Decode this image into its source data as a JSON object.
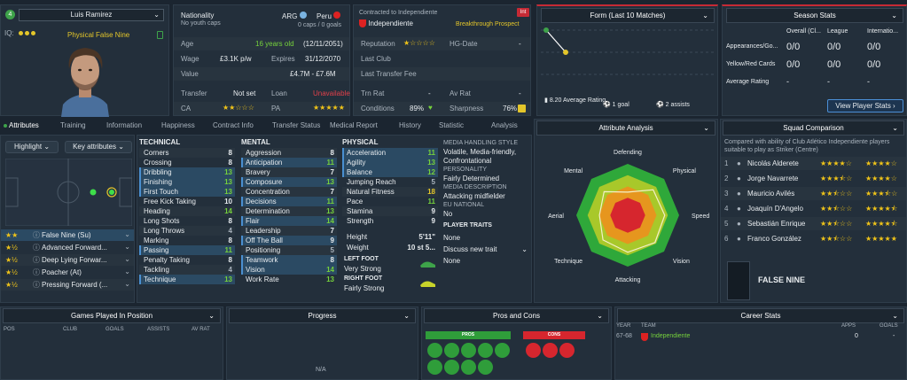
{
  "player": {
    "name": "Luis Ramirez",
    "iq_label": "IQ:",
    "role_text": "Physical False Nine",
    "position_badge": "4"
  },
  "nationality": {
    "label": "Nationality",
    "subtext": "No youth caps",
    "nation1": "ARG",
    "nation2": "Peru",
    "caps": "0 caps / 0 goals"
  },
  "contract": {
    "label": "Contracted to Independiente",
    "club": "Independiente",
    "tag": "Breakthrough Prospect",
    "badge": "Int"
  },
  "details": {
    "age_label": "Age",
    "age_value": "16 years old",
    "dob": "(12/11/2051)",
    "wage_label": "Wage",
    "wage_value": "£3.1K p/w",
    "expires_label": "Expires",
    "expires_value": "31/12/2070",
    "value_label": "Value",
    "value_value": "£4.7M - £7.6M",
    "transfer_label": "Transfer",
    "transfer_value": "Not set",
    "loan_label": "Loan",
    "loan_value": "Unavailable",
    "ca_label": "CA",
    "pa_label": "PA"
  },
  "reputation": {
    "reputation_label": "Reputation",
    "hgdate_label": "HG-Date",
    "hgdate_value": "-",
    "lastclub_label": "Last Club",
    "lastfee_label": "Last Transfer Fee",
    "trnrat_label": "Trn Rat",
    "trnrat_value": "-",
    "avrat_label": "Av Rat",
    "avrat_value": "-",
    "conditions_label": "Conditions",
    "conditions_value": "89%",
    "sharpness_label": "Sharpness",
    "sharpness_value": "76%"
  },
  "form": {
    "title": "Form (Last 10 Matches)",
    "avg_value": "8.20",
    "avg_label": "Average Rating",
    "goals": "1 goal",
    "assists": "2 assists"
  },
  "season": {
    "title": "Season Stats",
    "cols": [
      "Overall (Cl...",
      "League",
      "Internatio..."
    ],
    "rows": [
      {
        "label": "Appearances/Go...",
        "vals": [
          "0/0",
          "0/0",
          "0/0"
        ]
      },
      {
        "label": "Yellow/Red Cards",
        "vals": [
          "0/0",
          "0/0",
          "0/0"
        ]
      },
      {
        "label": "Average Rating",
        "vals": [
          "-",
          "-",
          "-"
        ]
      }
    ],
    "button": "View Player Stats"
  },
  "tabs": [
    "Attributes",
    "Training",
    "Information",
    "Happiness",
    "Contract Info",
    "Transfer Status",
    "Medical Report",
    "History",
    "Statistic",
    "Analysis"
  ],
  "left": {
    "highlight": "Highlight",
    "keyattr": "Key attributes",
    "roles": [
      {
        "name": "False Nine (Su)"
      },
      {
        "name": "Advanced Forward..."
      },
      {
        "name": "Deep Lying Forwar..."
      },
      {
        "name": "Poacher (At)"
      },
      {
        "name": "Pressing Forward (..."
      }
    ]
  },
  "technical": {
    "title": "TECHNICAL",
    "items": [
      {
        "n": "Corners",
        "v": "8"
      },
      {
        "n": "Crossing",
        "v": "8"
      },
      {
        "n": "Dribbling",
        "v": "13"
      },
      {
        "n": "Finishing",
        "v": "13"
      },
      {
        "n": "First Touch",
        "v": "13"
      },
      {
        "n": "Free Kick Taking",
        "v": "10"
      },
      {
        "n": "Heading",
        "v": "14"
      },
      {
        "n": "Long Shots",
        "v": "8"
      },
      {
        "n": "Long Throws",
        "v": "4"
      },
      {
        "n": "Marking",
        "v": "8"
      },
      {
        "n": "Passing",
        "v": "11"
      },
      {
        "n": "Penalty Taking",
        "v": "8"
      },
      {
        "n": "Tackling",
        "v": "4"
      },
      {
        "n": "Technique",
        "v": "13"
      }
    ]
  },
  "mental": {
    "title": "MENTAL",
    "items": [
      {
        "n": "Aggression",
        "v": "8"
      },
      {
        "n": "Anticipation",
        "v": "11"
      },
      {
        "n": "Bravery",
        "v": "7"
      },
      {
        "n": "Composure",
        "v": "13"
      },
      {
        "n": "Concentration",
        "v": "7"
      },
      {
        "n": "Decisions",
        "v": "11"
      },
      {
        "n": "Determination",
        "v": "13"
      },
      {
        "n": "Flair",
        "v": "14"
      },
      {
        "n": "Leadership",
        "v": "7"
      },
      {
        "n": "Off The Ball",
        "v": "9"
      },
      {
        "n": "Positioning",
        "v": "5"
      },
      {
        "n": "Teamwork",
        "v": "8"
      },
      {
        "n": "Vision",
        "v": "14"
      },
      {
        "n": "Work Rate",
        "v": "13"
      }
    ]
  },
  "physical": {
    "title": "PHYSICAL",
    "items": [
      {
        "n": "Acceleration",
        "v": "11"
      },
      {
        "n": "Agility",
        "v": "13"
      },
      {
        "n": "Balance",
        "v": "12"
      },
      {
        "n": "Jumping Reach",
        "v": "5"
      },
      {
        "n": "Natural Fitness",
        "v": "18"
      },
      {
        "n": "Pace",
        "v": "11"
      },
      {
        "n": "Stamina",
        "v": "9"
      },
      {
        "n": "Strength",
        "v": "9"
      }
    ],
    "height_label": "Height",
    "height_value": "5'11\"",
    "weight_label": "Weight",
    "weight_value": "10 st 5...",
    "leftfoot_label": "LEFT FOOT",
    "leftfoot_value": "Very Strong",
    "rightfoot_label": "RIGHT FOOT",
    "rightfoot_value": "Fairly Strong"
  },
  "media": {
    "style_label": "MEDIA HANDLING STYLE",
    "style_value": "Volatile, Media-friendly, Confrontational",
    "personality_label": "PERSONALITY",
    "personality_value": "Fairly Determined",
    "description_label": "MEDIA DESCRIPTION",
    "description_value": "Attacking midfielder",
    "eu_label": "EU NATIONAL",
    "eu_value": "No",
    "traits_label": "PLAYER TRAITS",
    "traits_value": "None",
    "discuss": "Discuss new trait",
    "discuss_value": "None"
  },
  "analysis": {
    "title": "Attribute Analysis",
    "labels": [
      "Defending",
      "Physical",
      "Speed",
      "Vision",
      "Attacking",
      "Technique",
      "Aerial",
      "Mental"
    ],
    "values": [
      0.45,
      0.7,
      0.72,
      0.75,
      0.72,
      0.68,
      0.55,
      0.65
    ]
  },
  "squad": {
    "title": "Squad Comparison",
    "desc": "Compared with ability of Club Atlético Independiente players suitable to play as Striker (Centre)",
    "players": [
      {
        "rank": "1",
        "name": "Nicolás Alderete",
        "ca": 4,
        "pa": 4
      },
      {
        "rank": "2",
        "name": "Jorge Navarrete",
        "ca": 3.5,
        "pa": 4
      },
      {
        "rank": "3",
        "name": "Mauricio Avilés",
        "ca": 2.5,
        "pa": 3.5
      },
      {
        "rank": "4",
        "name": "Joaquín D'Angelo",
        "ca": 2.5,
        "pa": 4.5
      },
      {
        "rank": "5",
        "name": "Sebastián Enrique",
        "ca": 2.5,
        "pa": 4.5
      },
      {
        "rank": "6",
        "name": "Franco González",
        "ca": 2.5,
        "pa": 5
      }
    ],
    "role": "FALSE NINE"
  },
  "bottom": {
    "games_title": "Games Played In Position",
    "games_cols": [
      "POS",
      "CLUB",
      "GOALS",
      "ASSISTS",
      "AV RAT"
    ],
    "progress_title": "Progress",
    "progress_na": "N/A",
    "proscons_title": "Pros and Cons",
    "pros_label": "PROS",
    "cons_label": "CONS",
    "career_title": "Career Stats",
    "career_cols": [
      "YEAR",
      "TEAM",
      "APPS",
      "GOALS"
    ],
    "career_row": {
      "year": "67-68",
      "team": "Independiente",
      "apps": "0",
      "goals": "-"
    }
  },
  "colors": {
    "accent_red": "#c62a35",
    "green": "#76d23c",
    "yellow": "#e4c62a",
    "panel": "#232f3b"
  }
}
